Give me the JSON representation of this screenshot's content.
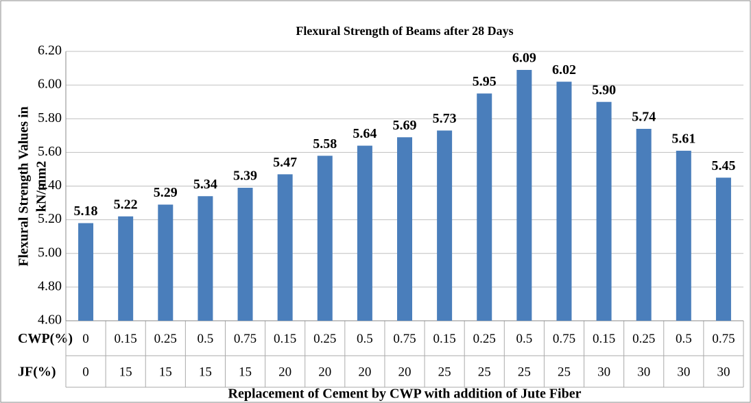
{
  "chart_data": {
    "type": "bar",
    "title": "Flexural Strength of Beams  after 28 Days",
    "x_label": "Replacement of Cement by CWP with addition of Jute Fiber",
    "y_label": [
      "Flexural Strength Values in",
      "kN/mm2"
    ],
    "category_rows": [
      {
        "name": "CWP(%)",
        "labels": [
          "0",
          "0.15",
          "0.25",
          "0.5",
          "0.75",
          "0.15",
          "0.25",
          "0.5",
          "0.75",
          "0.15",
          "0.25",
          "0.5",
          "0.75",
          "0.15",
          "0.25",
          "0.5",
          "0.75"
        ]
      },
      {
        "name": "JF(%)",
        "labels": [
          "0",
          "15",
          "15",
          "15",
          "15",
          "20",
          "20",
          "20",
          "20",
          "25",
          "25",
          "25",
          "25",
          "30",
          "30",
          "30",
          "30"
        ]
      }
    ],
    "values": [
      5.18,
      5.22,
      5.29,
      5.34,
      5.39,
      5.47,
      5.58,
      5.64,
      5.69,
      5.73,
      5.95,
      6.09,
      6.02,
      5.9,
      5.74,
      5.61,
      5.45
    ],
    "value_labels": [
      "5.18",
      "5.22",
      "5.29",
      "5.34",
      "5.39",
      "5.47",
      "5.58",
      "5.64",
      "5.69",
      "5.73",
      "5.95",
      "6.09",
      "6.02",
      "5.90",
      "5.74",
      "5.61",
      "5.45"
    ],
    "color": "#4a7ebb",
    "ylim": [
      4.6,
      6.2
    ],
    "yticks": [
      {
        "value": 4.6,
        "label": "4.60"
      },
      {
        "value": 4.8,
        "label": "4.80"
      },
      {
        "value": 5,
        "label": "5.00"
      },
      {
        "value": 5.2,
        "label": "5.20"
      },
      {
        "value": 5.4,
        "label": "5.40"
      },
      {
        "value": 5.6,
        "label": "5.60"
      },
      {
        "value": 5.8,
        "label": "5.80"
      },
      {
        "value": 6,
        "label": "6.00"
      },
      {
        "value": 6.2,
        "label": "6.20"
      }
    ],
    "grid": true
  }
}
